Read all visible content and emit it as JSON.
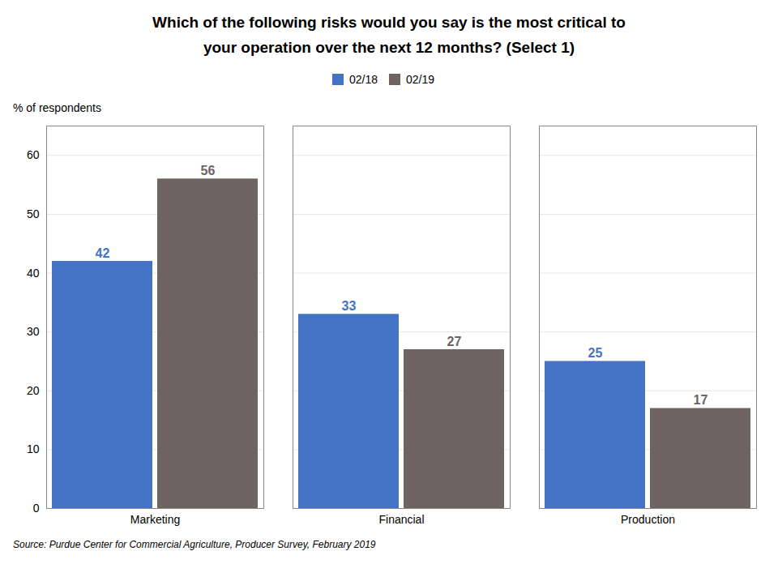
{
  "chart_data": {
    "type": "bar",
    "title": "Which of the following risks would you say is the most critical to",
    "subtitle": "your operation over the next 12 months?  (Select 1)",
    "y_label": "% of respondents",
    "source": "Source: Purdue Center for Commercial Agriculture, Producer Survey, February 2019",
    "categories": [
      "Marketing",
      "Financial",
      "Production"
    ],
    "series": [
      {
        "name": "02/18",
        "color": "#4472C4",
        "values": [
          42,
          33,
          25
        ]
      },
      {
        "name": "02/19",
        "color": "#6D6462",
        "values": [
          56,
          27,
          17
        ]
      }
    ],
    "ylim": [
      0,
      65
    ],
    "yticks": [
      0,
      10,
      20,
      30,
      40,
      50,
      60
    ],
    "grid": true,
    "legend": "top",
    "data_labels": true
  }
}
